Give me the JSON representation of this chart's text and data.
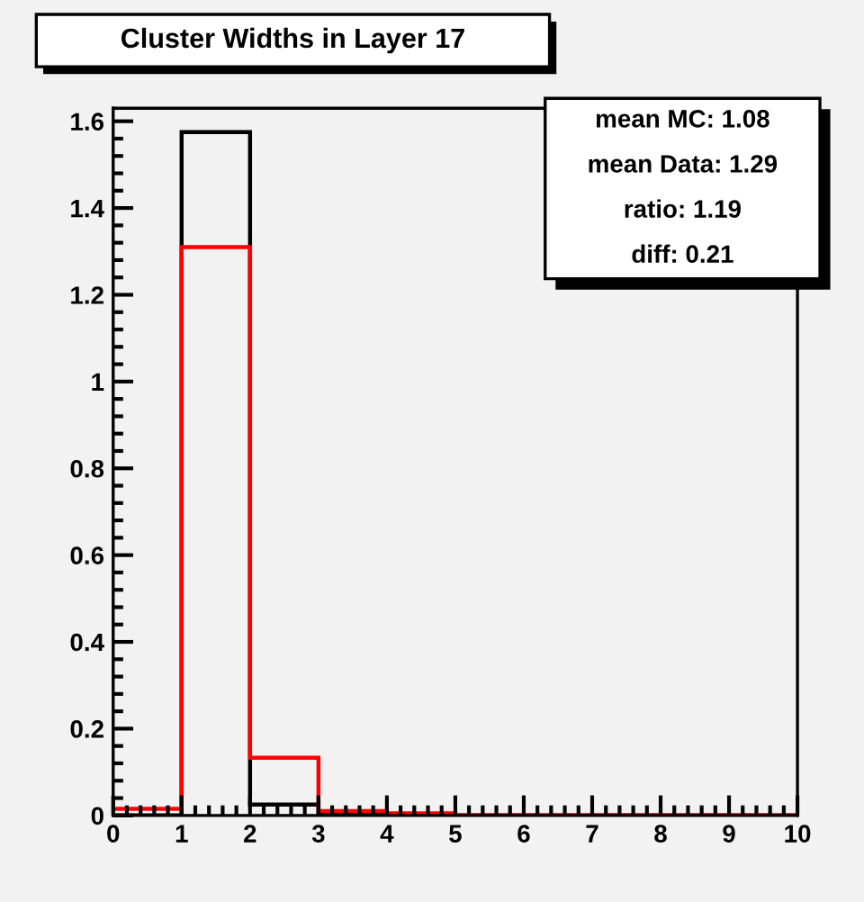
{
  "chart_data": {
    "type": "histogram",
    "title": "Cluster Widths in Layer 17",
    "bins": [
      0,
      1,
      2,
      3,
      4,
      5,
      6,
      7,
      8,
      9,
      10
    ],
    "series": [
      {
        "color": "#000000",
        "values": [
          0,
          1.575,
          0.025,
          0.005,
          0.002,
          0,
          0,
          0,
          0,
          0
        ]
      },
      {
        "color": "#ff0000",
        "values": [
          0.015,
          1.31,
          0.133,
          0.01,
          0.005,
          0,
          0,
          0,
          0,
          0
        ]
      }
    ],
    "xlim": [
      0,
      10
    ],
    "ylim": [
      0,
      1.63
    ],
    "xticks": [
      0,
      1,
      2,
      3,
      4,
      5,
      6,
      7,
      8,
      9,
      10
    ],
    "yticks": [
      0,
      0.2,
      0.4,
      0.6,
      0.8,
      1,
      1.2,
      1.4,
      1.6
    ],
    "grid": false,
    "legend": false,
    "annotations": [
      "mean MC: 1.08",
      "mean Data: 1.29",
      "ratio: 1.19",
      "diff: 0.21"
    ]
  }
}
